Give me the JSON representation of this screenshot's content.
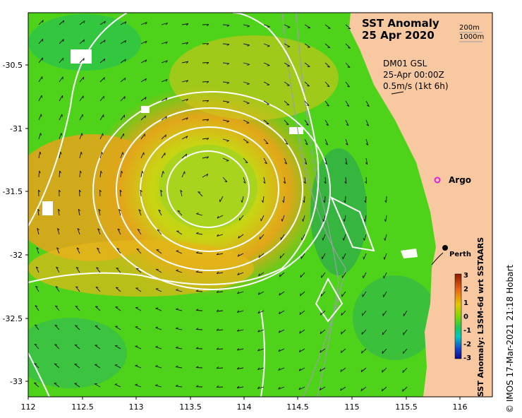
{
  "title": {
    "line1": "SST Anomaly",
    "line2": "25 Apr 2020"
  },
  "depth_legend": {
    "d200": "200m",
    "d1000": "1000m"
  },
  "current_info": {
    "line1": "DM01 GSL",
    "line2": "25-Apr 00:00Z",
    "line3": "0.5m/s (1kt 6h)"
  },
  "markers": {
    "argo": "Argo",
    "perth": "Perth"
  },
  "x_ticks": [
    "112",
    "112.5",
    "113",
    "113.5",
    "114",
    "114.5",
    "115",
    "115.5",
    "116"
  ],
  "y_ticks": [
    "-30.5",
    "-31",
    "-31.5",
    "-32",
    "-32.5",
    "-33"
  ],
  "colorbar": {
    "label": "SST Anomaly: L3SM-6d wrt SSTAARS",
    "ticks": [
      "3",
      "2",
      "1",
      "0",
      "-1",
      "-2",
      "-3"
    ],
    "colors": {
      "top": "#8b1a00",
      "orange": "#e8641a",
      "yellow": "#e6c600",
      "green": "#7ed800",
      "cyan": "#00c8c0",
      "blue": "#1446d2",
      "bottom": "#0a0a8c"
    }
  },
  "copyright": "© IMOS 17-Mar-2021 21:18 Hobart",
  "colors": {
    "land": "#f8c9a0",
    "argo": "#e020e0",
    "contour": "#ffffff",
    "isobath": "#9aa0a6"
  }
}
